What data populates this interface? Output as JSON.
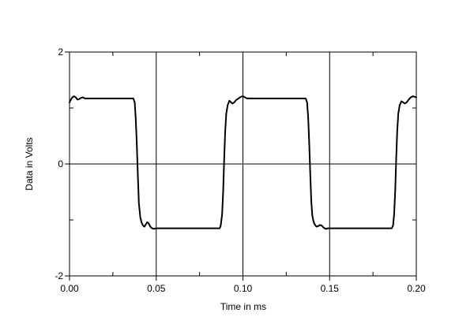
{
  "chart_data": {
    "type": "line",
    "title": "",
    "xlabel": "Time in ms",
    "ylabel": "Data in Volts",
    "xlim": [
      0,
      0.2
    ],
    "ylim": [
      -2,
      2
    ],
    "x_ticks": [
      {
        "value": 0.0,
        "label": "0.00"
      },
      {
        "value": 0.05,
        "label": "0.05"
      },
      {
        "value": 0.1,
        "label": "0.10"
      },
      {
        "value": 0.15,
        "label": "0.15"
      },
      {
        "value": 0.2,
        "label": "0.20"
      }
    ],
    "x_minor_ticks": [
      0.025,
      0.075,
      0.125,
      0.175
    ],
    "y_ticks": [
      {
        "value": 2,
        "label": "2"
      },
      {
        "value": 0,
        "label": "0"
      },
      {
        "value": -2,
        "label": "-2"
      }
    ],
    "y_minor_ticks": [
      1,
      -1
    ],
    "grid": {
      "x": true,
      "y": [
        0
      ]
    },
    "colors": {
      "line": "#000000",
      "grid": "#000000",
      "background": "#ffffff"
    },
    "series": [
      {
        "points": [
          [
            0.0,
            1.1
          ],
          [
            0.0008,
            1.15
          ],
          [
            0.0016,
            1.19
          ],
          [
            0.0026,
            1.21
          ],
          [
            0.0036,
            1.19
          ],
          [
            0.0046,
            1.15
          ],
          [
            0.0056,
            1.16
          ],
          [
            0.0066,
            1.18
          ],
          [
            0.0076,
            1.19
          ],
          [
            0.009,
            1.17
          ],
          [
            0.012,
            1.17
          ],
          [
            0.02,
            1.17
          ],
          [
            0.03,
            1.17
          ],
          [
            0.0368,
            1.17
          ],
          [
            0.0376,
            1.1
          ],
          [
            0.0382,
            0.8
          ],
          [
            0.0388,
            0.35
          ],
          [
            0.0394,
            -0.2
          ],
          [
            0.04,
            -0.7
          ],
          [
            0.0408,
            -0.95
          ],
          [
            0.0416,
            -1.05
          ],
          [
            0.0424,
            -1.1
          ],
          [
            0.0432,
            -1.12
          ],
          [
            0.044,
            -1.08
          ],
          [
            0.0448,
            -1.04
          ],
          [
            0.0456,
            -1.06
          ],
          [
            0.0466,
            -1.12
          ],
          [
            0.0476,
            -1.15
          ],
          [
            0.0486,
            -1.16
          ],
          [
            0.05,
            -1.15
          ],
          [
            0.055,
            -1.15
          ],
          [
            0.065,
            -1.15
          ],
          [
            0.075,
            -1.15
          ],
          [
            0.0866,
            -1.15
          ],
          [
            0.0872,
            -1.1
          ],
          [
            0.088,
            -0.9
          ],
          [
            0.0886,
            -0.5
          ],
          [
            0.0892,
            0.1
          ],
          [
            0.0898,
            0.6
          ],
          [
            0.0904,
            0.9
          ],
          [
            0.0912,
            1.05
          ],
          [
            0.0922,
            1.13
          ],
          [
            0.0932,
            1.1
          ],
          [
            0.094,
            1.08
          ],
          [
            0.095,
            1.1
          ],
          [
            0.096,
            1.14
          ],
          [
            0.0974,
            1.17
          ],
          [
            0.0988,
            1.2
          ],
          [
            0.1,
            1.21
          ],
          [
            0.1012,
            1.19
          ],
          [
            0.1024,
            1.17
          ],
          [
            0.104,
            1.17
          ],
          [
            0.11,
            1.17
          ],
          [
            0.12,
            1.17
          ],
          [
            0.13,
            1.17
          ],
          [
            0.1362,
            1.17
          ],
          [
            0.137,
            1.1
          ],
          [
            0.1376,
            0.85
          ],
          [
            0.1382,
            0.4
          ],
          [
            0.1388,
            -0.15
          ],
          [
            0.1394,
            -0.65
          ],
          [
            0.14,
            -0.92
          ],
          [
            0.1408,
            -1.04
          ],
          [
            0.1416,
            -1.09
          ],
          [
            0.1424,
            -1.12
          ],
          [
            0.1434,
            -1.11
          ],
          [
            0.1444,
            -1.09
          ],
          [
            0.1454,
            -1.1
          ],
          [
            0.1466,
            -1.14
          ],
          [
            0.1478,
            -1.16
          ],
          [
            0.149,
            -1.15
          ],
          [
            0.155,
            -1.15
          ],
          [
            0.165,
            -1.15
          ],
          [
            0.175,
            -1.15
          ],
          [
            0.1858,
            -1.15
          ],
          [
            0.1866,
            -1.1
          ],
          [
            0.1872,
            -0.9
          ],
          [
            0.1878,
            -0.5
          ],
          [
            0.1884,
            0.1
          ],
          [
            0.189,
            0.6
          ],
          [
            0.1896,
            0.9
          ],
          [
            0.1904,
            1.05
          ],
          [
            0.1914,
            1.12
          ],
          [
            0.1924,
            1.1
          ],
          [
            0.1934,
            1.08
          ],
          [
            0.1944,
            1.1
          ],
          [
            0.1956,
            1.15
          ],
          [
            0.1968,
            1.19
          ],
          [
            0.198,
            1.21
          ],
          [
            0.199,
            1.2
          ],
          [
            0.2,
            1.19
          ]
        ]
      }
    ]
  }
}
